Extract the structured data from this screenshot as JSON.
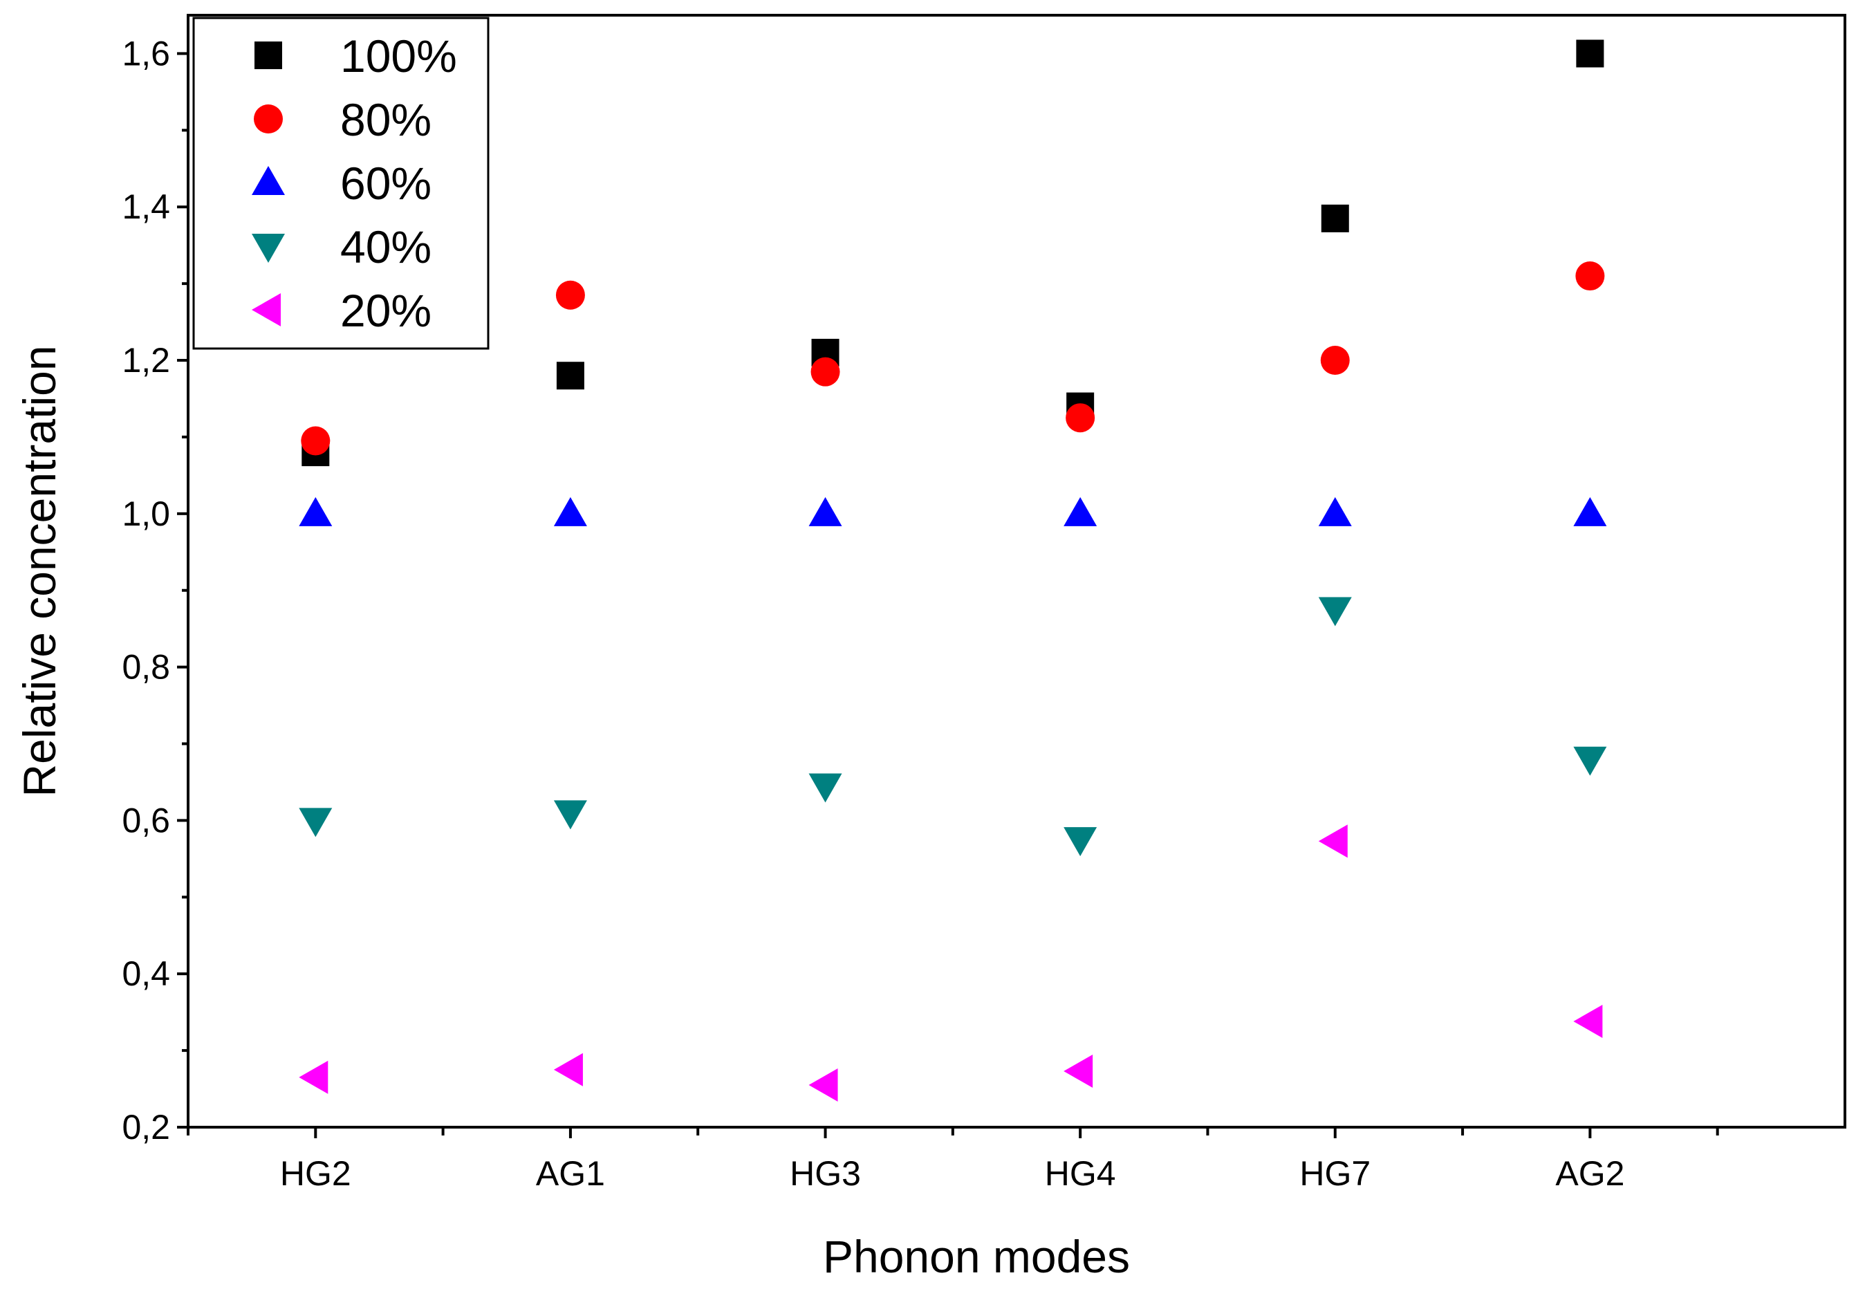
{
  "chart_data": {
    "type": "scatter",
    "title": "",
    "xlabel": "Phonon modes",
    "ylabel": "Relative concentration",
    "categories": [
      "HG2",
      "AG1",
      "HG3",
      "HG4",
      "HG7",
      "AG2"
    ],
    "ylim": [
      0.2,
      1.65
    ],
    "yticks": [
      "0,2",
      "0,4",
      "0,6",
      "0,8",
      "1,0",
      "1,2",
      "1,4",
      "1,6"
    ],
    "ytick_values": [
      0.2,
      0.4,
      0.6,
      0.8,
      1.0,
      1.2,
      1.4,
      1.6
    ],
    "grid": false,
    "legend_position": "top-left",
    "series": [
      {
        "name": "100%",
        "marker": "square",
        "color": "#000000",
        "values": [
          1.08,
          1.18,
          1.21,
          1.14,
          1.385,
          1.6
        ]
      },
      {
        "name": "80%",
        "marker": "circle",
        "color": "#ff0000",
        "values": [
          1.095,
          1.285,
          1.185,
          1.125,
          1.2,
          1.31
        ]
      },
      {
        "name": "60%",
        "marker": "triangle-up",
        "color": "#0000ff",
        "values": [
          1.0,
          1.0,
          1.0,
          1.0,
          1.0,
          1.0
        ]
      },
      {
        "name": "40%",
        "marker": "triangle-down",
        "color": "#008080",
        "values": [
          0.6,
          0.61,
          0.645,
          0.575,
          0.875,
          0.68
        ]
      },
      {
        "name": "20%",
        "marker": "triangle-left",
        "color": "#ff00ff",
        "values": [
          0.265,
          0.275,
          0.255,
          0.273,
          0.573,
          0.338
        ]
      }
    ]
  }
}
